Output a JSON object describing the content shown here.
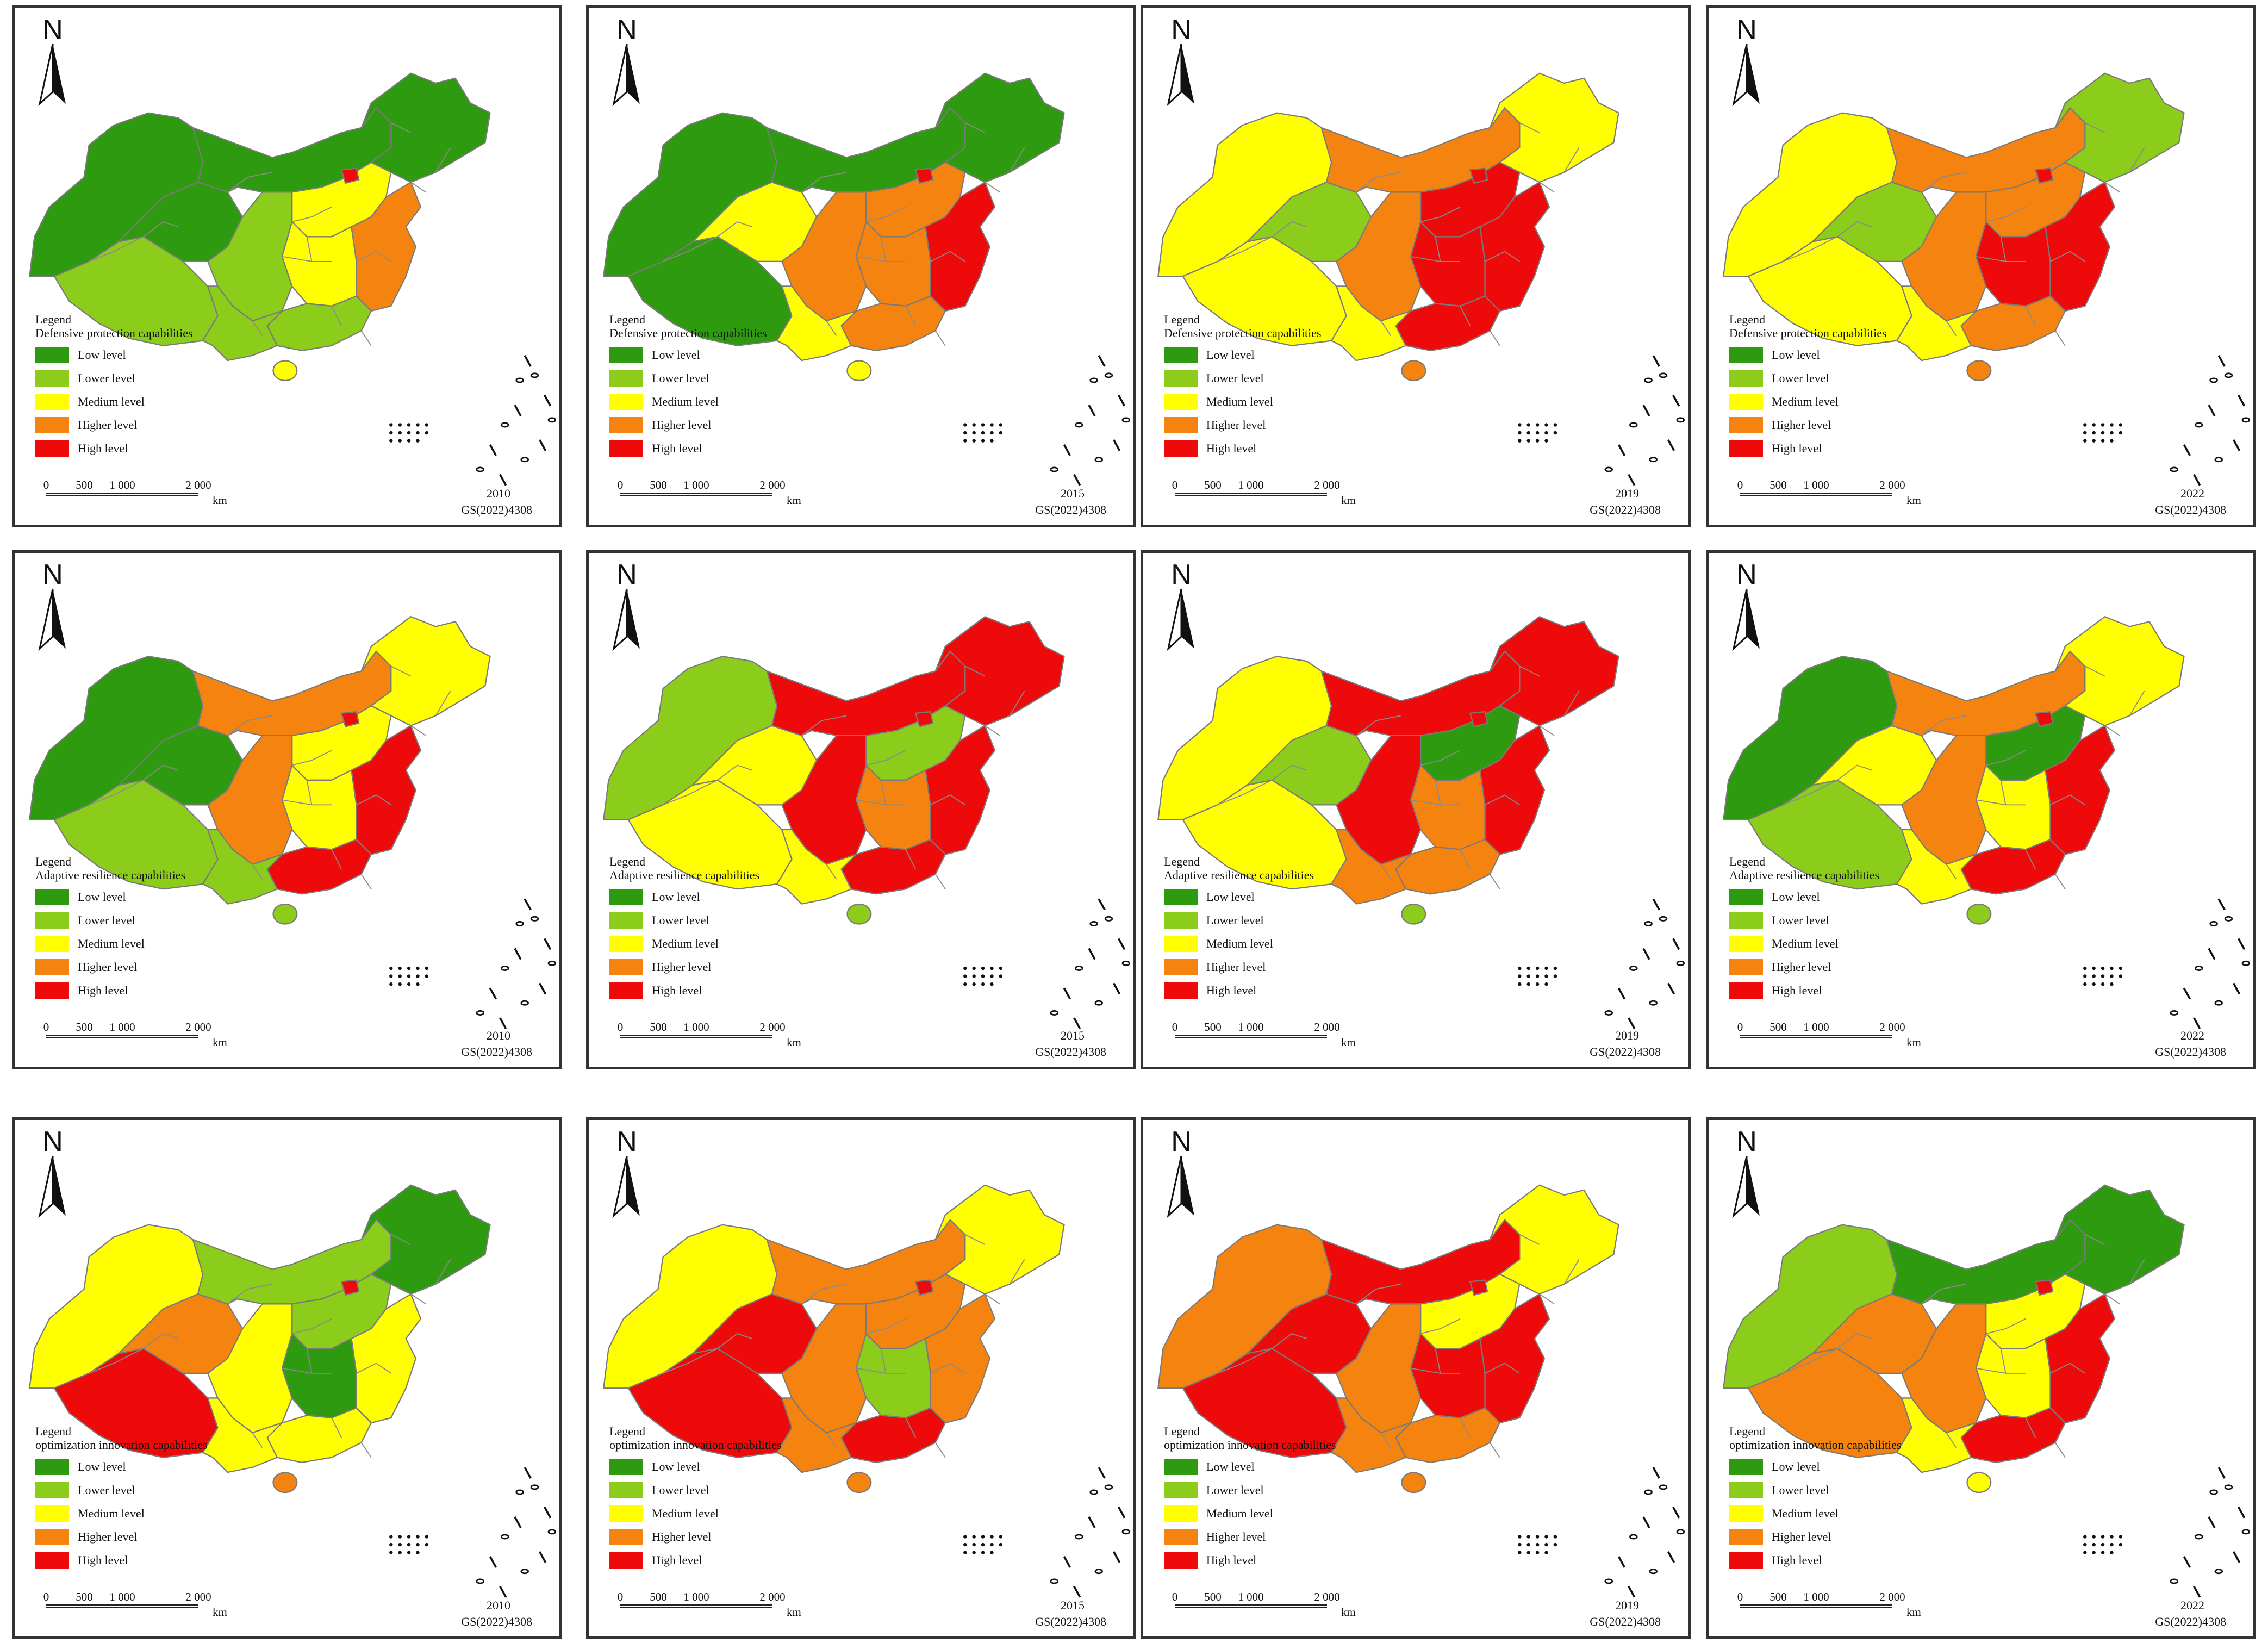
{
  "colors": {
    "low": "#2e9a0f",
    "lower": "#8ccc1b",
    "medium": "#ffff00",
    "higher": "#f4830f",
    "high": "#ee0a0a"
  },
  "north_label": "N",
  "legend_title": "Legend",
  "legend_levels": [
    "Low level",
    "Lower level",
    "Medium level",
    "Higher level",
    "High level"
  ],
  "scale": {
    "ticks": [
      "0",
      "500",
      "1 000",
      "2 000"
    ],
    "unit": "km"
  },
  "approval_code": "GS(2022)4308",
  "rows": [
    {
      "indicator": "Defensive protection capabilities",
      "panels": [
        {
          "year": "2010",
          "regions": {
            "northwest": "low",
            "tibet": "lower",
            "qinghai": "low",
            "inner_mongolia": "low",
            "northeast": "low",
            "north": "medium",
            "east": "higher",
            "central": "medium",
            "south": "lower",
            "southwest": "lower",
            "yunnan": "lower",
            "hainan": "medium",
            "beijing": "high"
          }
        },
        {
          "year": "2015",
          "regions": {
            "northwest": "low",
            "tibet": "low",
            "qinghai": "medium",
            "inner_mongolia": "low",
            "northeast": "low",
            "north": "higher",
            "east": "high",
            "central": "higher",
            "south": "higher",
            "southwest": "higher",
            "yunnan": "medium",
            "hainan": "medium",
            "beijing": "high"
          }
        },
        {
          "year": "2019",
          "regions": {
            "northwest": "medium",
            "tibet": "medium",
            "qinghai": "lower",
            "inner_mongolia": "higher",
            "northeast": "medium",
            "north": "high",
            "east": "high",
            "central": "high",
            "south": "high",
            "southwest": "higher",
            "yunnan": "medium",
            "hainan": "higher",
            "beijing": "high"
          }
        },
        {
          "year": "2022",
          "regions": {
            "northwest": "medium",
            "tibet": "medium",
            "qinghai": "lower",
            "inner_mongolia": "higher",
            "northeast": "lower",
            "north": "higher",
            "east": "high",
            "central": "high",
            "south": "higher",
            "southwest": "higher",
            "yunnan": "medium",
            "hainan": "higher",
            "beijing": "high"
          }
        }
      ]
    },
    {
      "indicator": "Adaptive resilience capabilities",
      "panels": [
        {
          "year": "2010",
          "regions": {
            "northwest": "low",
            "tibet": "lower",
            "qinghai": "low",
            "inner_mongolia": "higher",
            "northeast": "medium",
            "north": "medium",
            "east": "high",
            "central": "medium",
            "south": "high",
            "southwest": "higher",
            "yunnan": "lower",
            "hainan": "lower",
            "beijing": "high"
          }
        },
        {
          "year": "2015",
          "regions": {
            "northwest": "lower",
            "tibet": "medium",
            "qinghai": "medium",
            "inner_mongolia": "high",
            "northeast": "high",
            "north": "lower",
            "east": "high",
            "central": "higher",
            "south": "high",
            "southwest": "high",
            "yunnan": "medium",
            "hainan": "lower",
            "beijing": "high"
          }
        },
        {
          "year": "2019",
          "regions": {
            "northwest": "medium",
            "tibet": "medium",
            "qinghai": "lower",
            "inner_mongolia": "high",
            "northeast": "high",
            "north": "low",
            "east": "high",
            "central": "higher",
            "south": "higher",
            "southwest": "high",
            "yunnan": "higher",
            "hainan": "lower",
            "beijing": "high"
          }
        },
        {
          "year": "2022",
          "regions": {
            "northwest": "low",
            "tibet": "lower",
            "qinghai": "medium",
            "inner_mongolia": "higher",
            "northeast": "medium",
            "north": "low",
            "east": "high",
            "central": "medium",
            "south": "high",
            "southwest": "higher",
            "yunnan": "medium",
            "hainan": "lower",
            "beijing": "high"
          }
        }
      ]
    },
    {
      "indicator": "optimization innovation capabilities",
      "panels": [
        {
          "year": "2010",
          "regions": {
            "northwest": "medium",
            "tibet": "high",
            "qinghai": "higher",
            "inner_mongolia": "lower",
            "northeast": "low",
            "north": "lower",
            "east": "medium",
            "central": "low",
            "south": "medium",
            "southwest": "medium",
            "yunnan": "medium",
            "hainan": "higher",
            "beijing": "high"
          }
        },
        {
          "year": "2015",
          "regions": {
            "northwest": "medium",
            "tibet": "high",
            "qinghai": "high",
            "inner_mongolia": "higher",
            "northeast": "medium",
            "north": "higher",
            "east": "higher",
            "central": "lower",
            "south": "high",
            "southwest": "higher",
            "yunnan": "higher",
            "hainan": "higher",
            "beijing": "high"
          }
        },
        {
          "year": "2019",
          "regions": {
            "northwest": "higher",
            "tibet": "high",
            "qinghai": "high",
            "inner_mongolia": "high",
            "northeast": "medium",
            "north": "medium",
            "east": "high",
            "central": "high",
            "south": "higher",
            "southwest": "higher",
            "yunnan": "higher",
            "hainan": "higher",
            "beijing": "high"
          }
        },
        {
          "year": "2022",
          "regions": {
            "northwest": "lower",
            "tibet": "higher",
            "qinghai": "higher",
            "inner_mongolia": "low",
            "northeast": "low",
            "north": "medium",
            "east": "high",
            "central": "medium",
            "south": "high",
            "southwest": "higher",
            "yunnan": "medium",
            "hainan": "medium",
            "beijing": "high"
          }
        }
      ]
    }
  ]
}
